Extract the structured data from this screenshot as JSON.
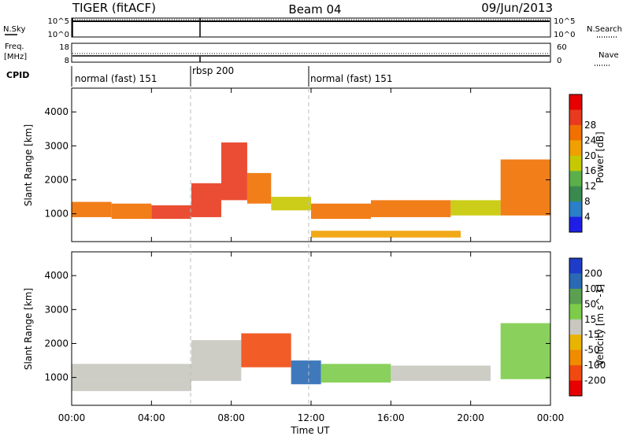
{
  "header": {
    "station": "TIGER (fitACF)",
    "beam": "Beam 04",
    "date": "09/Jun/2013"
  },
  "strip_panels": {
    "nsky_label": "N.Sky",
    "nsky_ticks": [
      "10^5",
      "10^0"
    ],
    "nsearch_label": "N.Search",
    "nsearch_ticks": [
      "10^5",
      "10^0"
    ],
    "freq_label_1": "Freq.",
    "freq_label_2": "[MHz]",
    "freq_ticks": [
      "18",
      "8"
    ],
    "nave_label": "Nave",
    "nave_ticks": [
      "60",
      "0"
    ],
    "cpid_label": "CPID",
    "cpid_segments": [
      {
        "label": "normal (fast) 151",
        "start_hour": 0
      },
      {
        "label": "rbsp 200",
        "start_hour": 6
      },
      {
        "label": "normal (fast) 151",
        "start_hour": 12
      }
    ]
  },
  "colors": {
    "power_scale": [
      "#1e1ee6",
      "#2a7fc8",
      "#3a8a50",
      "#5cb04a",
      "#c6c800",
      "#f0a000",
      "#f07000",
      "#e83a1e",
      "#e60000"
    ],
    "velocity_scale": [
      "#1e3cc8",
      "#2a6ab4",
      "#5aa050",
      "#7ccc4a",
      "#c8c8c0",
      "#e8b400",
      "#f08c00",
      "#f04a10",
      "#e60000"
    ]
  },
  "chart_data": [
    {
      "type": "heatmap",
      "title": "",
      "ylabel": "Slant Range [km]",
      "xlabel": "Time UT",
      "x_ticks": [
        "00:00",
        "04:00",
        "08:00",
        "12:00",
        "16:00",
        "20:00",
        "00:00"
      ],
      "x_range_hours": [
        0,
        24
      ],
      "y_ticks": [
        1000,
        2000,
        3000,
        4000
      ],
      "y_range_km": [
        180,
        4700
      ],
      "colorbar_label": "Power [dB]",
      "colorbar_ticks": [
        4,
        8,
        12,
        16,
        20,
        24,
        28
      ],
      "colorbar_range": [
        0,
        30
      ],
      "bands": [
        {
          "t0": 0,
          "t1": 2,
          "r0": 900,
          "r1": 1350,
          "v": 22
        },
        {
          "t0": 2,
          "t1": 4,
          "r0": 850,
          "r1": 1300,
          "v": 20
        },
        {
          "t0": 4,
          "t1": 6,
          "r0": 850,
          "r1": 1250,
          "v": 25
        },
        {
          "t0": 6,
          "t1": 7.5,
          "r0": 900,
          "r1": 1900,
          "v": 26
        },
        {
          "t0": 7.5,
          "t1": 8.8,
          "r0": 1400,
          "r1": 3100,
          "v": 24
        },
        {
          "t0": 8.8,
          "t1": 10,
          "r0": 1300,
          "r1": 2200,
          "v": 20
        },
        {
          "t0": 10,
          "t1": 12,
          "r0": 1100,
          "r1": 1500,
          "v": 14
        },
        {
          "t0": 12,
          "t1": 15,
          "r0": 850,
          "r1": 1300,
          "v": 20
        },
        {
          "t0": 15,
          "t1": 19,
          "r0": 900,
          "r1": 1400,
          "v": 22
        },
        {
          "t0": 19,
          "t1": 21.5,
          "r0": 950,
          "r1": 1400,
          "v": 14
        },
        {
          "t0": 21.5,
          "t1": 24,
          "r0": 950,
          "r1": 2600,
          "v": 20
        },
        {
          "t0": 12,
          "t1": 19.5,
          "r0": 300,
          "r1": 500,
          "v": 18
        }
      ]
    },
    {
      "type": "heatmap",
      "title": "",
      "ylabel": "Slant Range [km]",
      "xlabel": "Time UT",
      "x_ticks": [
        "00:00",
        "04:00",
        "08:00",
        "12:00",
        "16:00",
        "20:00",
        "00:00"
      ],
      "x_range_hours": [
        0,
        24
      ],
      "y_ticks": [
        1000,
        2000,
        3000,
        4000
      ],
      "y_range_km": [
        180,
        4700
      ],
      "colorbar_label": "Velocity [m s^-1]",
      "colorbar_ticks": [
        200,
        100,
        50,
        15,
        -15,
        -50,
        -100,
        -200
      ],
      "colorbar_range": [
        -250,
        250
      ],
      "bands": [
        {
          "t0": 0,
          "t1": 6,
          "r0": 900,
          "r1": 1400,
          "v": 0
        },
        {
          "t0": 0,
          "t1": 6,
          "r0": 600,
          "r1": 900,
          "v": 20
        },
        {
          "t0": 6,
          "t1": 8.5,
          "r0": 900,
          "r1": 2100,
          "v": 0
        },
        {
          "t0": 8.5,
          "t1": 11,
          "r0": 1300,
          "r1": 2300,
          "v": -150
        },
        {
          "t0": 11,
          "t1": 12.5,
          "r0": 800,
          "r1": 1500,
          "v": 180
        },
        {
          "t0": 12.5,
          "t1": 16,
          "r0": 850,
          "r1": 1400,
          "v": 40
        },
        {
          "t0": 16,
          "t1": 21,
          "r0": 900,
          "r1": 1350,
          "v": 0
        },
        {
          "t0": 21.5,
          "t1": 24,
          "r0": 950,
          "r1": 2600,
          "v": 30
        }
      ]
    }
  ]
}
